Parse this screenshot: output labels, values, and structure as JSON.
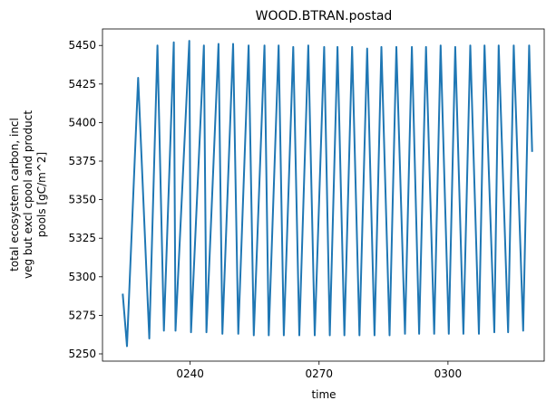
{
  "chart_data": {
    "type": "line",
    "title": "WOOD.BTRAN.postad",
    "xlabel": "time",
    "ylabel_lines": [
      "total ecosystem carbon, incl",
      "veg but excl cpool and product",
      "pools [gC/m^2]"
    ],
    "xlim": [
      219.6,
      322.4
    ],
    "ylim": [
      5245.3,
      5460.7
    ],
    "x_ticks": [
      {
        "value": 240,
        "label": "0240"
      },
      {
        "value": 270,
        "label": "0270"
      },
      {
        "value": 300,
        "label": "0300"
      }
    ],
    "y_ticks": [
      5250,
      5275,
      5300,
      5325,
      5350,
      5375,
      5400,
      5425,
      5450
    ],
    "grid": false,
    "series": [
      {
        "color": "#1f77b4",
        "x": [
          224.3,
          225.3,
          227.9,
          230.5,
          232.4,
          233.9,
          236.2,
          236.6,
          239.8,
          240.2,
          243.2,
          243.8,
          246.6,
          247.5,
          250.0,
          251.2,
          253.6,
          254.8,
          257.3,
          258.3,
          260.6,
          261.8,
          264.0,
          265.4,
          267.5,
          269.0,
          271.2,
          272.5,
          274.3,
          275.9,
          277.7,
          279.4,
          281.2,
          282.9,
          284.5,
          286.4,
          288.0,
          290.0,
          291.6,
          293.3,
          294.9,
          296.8,
          298.3,
          300.2,
          301.7,
          303.6,
          305.2,
          307.2,
          308.5,
          310.8,
          311.8,
          314.0,
          315.3,
          317.5,
          318.9,
          319.6
        ],
        "y": [
          5289,
          5255,
          5429,
          5260,
          5450,
          5265,
          5452,
          5265,
          5453,
          5264,
          5450,
          5264,
          5451,
          5263,
          5451,
          5263,
          5450,
          5262,
          5450,
          5262,
          5450,
          5262,
          5449,
          5262,
          5450,
          5262,
          5449,
          5262,
          5449,
          5262,
          5449,
          5262,
          5448,
          5262,
          5449,
          5262,
          5449,
          5263,
          5449,
          5263,
          5449,
          5263,
          5450,
          5263,
          5449,
          5263,
          5450,
          5263,
          5450,
          5264,
          5450,
          5264,
          5450,
          5265,
          5450,
          5381
        ]
      }
    ]
  }
}
